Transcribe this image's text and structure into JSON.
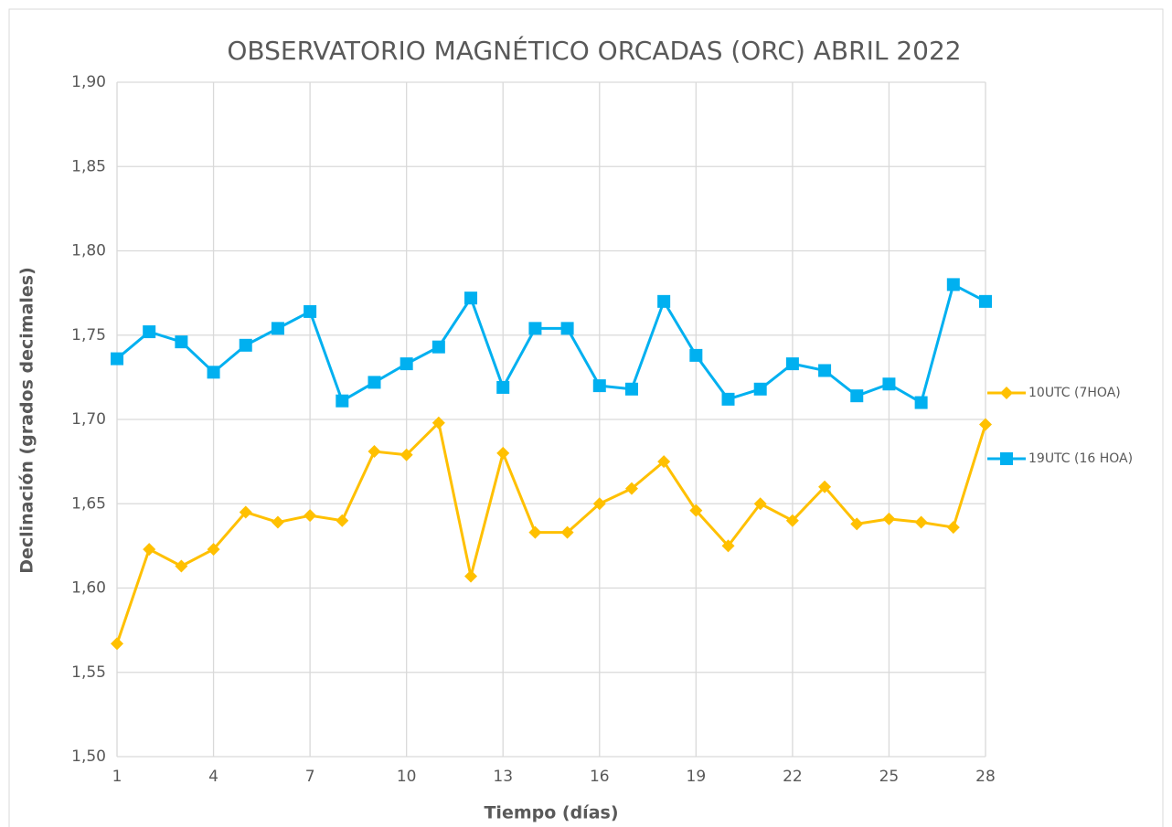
{
  "chart_data": {
    "type": "line",
    "title": "OBSERVATORIO MAGNÉTICO ORCADAS (ORC)  ABRIL 2022",
    "x_label": "Tiempo (días)",
    "y_label": "Declinación (grados decimales)",
    "x": [
      1,
      2,
      3,
      4,
      5,
      6,
      7,
      8,
      9,
      10,
      11,
      12,
      13,
      14,
      15,
      16,
      17,
      18,
      19,
      20,
      21,
      22,
      23,
      24,
      25,
      26,
      27,
      28
    ],
    "xlim": [
      1,
      28
    ],
    "xticks": [
      1,
      4,
      7,
      10,
      13,
      16,
      19,
      22,
      25,
      28
    ],
    "ylim": [
      1.5,
      1.9
    ],
    "yticks": [
      {
        "value": 1.5,
        "label": "1,50"
      },
      {
        "value": 1.55,
        "label": "1,55"
      },
      {
        "value": 1.6,
        "label": "1,60"
      },
      {
        "value": 1.65,
        "label": "1,65"
      },
      {
        "value": 1.7,
        "label": "1,70"
      },
      {
        "value": 1.75,
        "label": "1,75"
      },
      {
        "value": 1.8,
        "label": "1,80"
      },
      {
        "value": 1.85,
        "label": "1,85"
      },
      {
        "value": 1.9,
        "label": "1,90"
      }
    ],
    "grid": true,
    "legend": "right",
    "series": [
      {
        "name": "10UTC (7HOA)",
        "color": "#FFC000",
        "marker": "diamond",
        "values": [
          1.567,
          1.623,
          1.613,
          1.623,
          1.645,
          1.639,
          1.643,
          1.64,
          1.681,
          1.679,
          1.698,
          1.607,
          1.68,
          1.633,
          1.633,
          1.65,
          1.659,
          1.675,
          1.646,
          1.625,
          1.65,
          1.64,
          1.66,
          1.638,
          1.641,
          1.639,
          1.636,
          1.697
        ]
      },
      {
        "name": "19UTC (16 HOA)",
        "color": "#00B0F0",
        "marker": "square",
        "values": [
          1.736,
          1.752,
          1.746,
          1.728,
          1.744,
          1.754,
          1.764,
          1.711,
          1.722,
          1.733,
          1.743,
          1.772,
          1.719,
          1.754,
          1.754,
          1.72,
          1.718,
          1.77,
          1.738,
          1.712,
          1.718,
          1.733,
          1.729,
          1.714,
          1.721,
          1.71,
          1.78,
          1.77
        ]
      }
    ]
  }
}
